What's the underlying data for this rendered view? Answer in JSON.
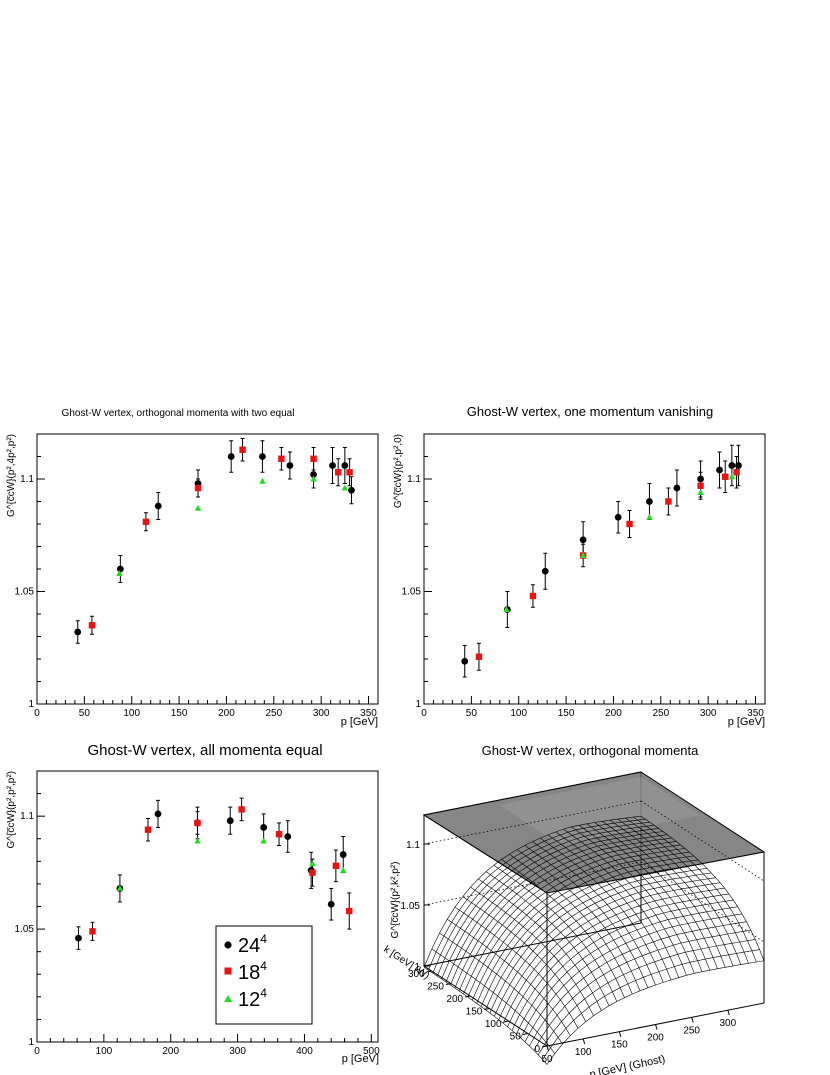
{
  "colors": {
    "series_24": "#000000",
    "series_18": "#ee1111",
    "series_12": "#22dd22"
  },
  "chart_data": [
    {
      "id": "p1",
      "type": "scatter",
      "title": "Ghost-W vertex, orthogonal momenta with two equal",
      "ylabel": "G^{c̅cW}(p²,4p²,p²)",
      "xlabel": "p [GeV]",
      "xlim": [
        0,
        360
      ],
      "ylim": [
        1.0,
        1.12
      ],
      "xticks": [
        0,
        50,
        100,
        150,
        200,
        250,
        300,
        350
      ],
      "yticks": [
        1.05,
        1.1
      ],
      "series": [
        {
          "key": "24",
          "marker": "circle",
          "x": [
            43,
            88,
            128,
            170,
            205,
            238,
            267,
            292,
            312,
            325,
            332
          ],
          "y": [
            1.032,
            1.06,
            1.088,
            1.098,
            1.11,
            1.11,
            1.106,
            1.102,
            1.106,
            1.106,
            1.095
          ],
          "err": [
            0.005,
            0.006,
            0.006,
            0.006,
            0.007,
            0.007,
            0.006,
            0.006,
            0.008,
            0.008,
            0.006
          ]
        },
        {
          "key": "18",
          "marker": "square",
          "x": [
            58,
            115,
            170,
            217,
            258,
            292,
            318,
            330
          ],
          "y": [
            1.035,
            1.081,
            1.096,
            1.113,
            1.109,
            1.109,
            1.103,
            1.103
          ],
          "err": [
            0.004,
            0.004,
            0.004,
            0.005,
            0.005,
            0.005,
            0.006,
            0.006
          ]
        },
        {
          "key": "12",
          "marker": "triangle",
          "x": [
            87,
            170,
            238,
            292,
            325
          ],
          "y": [
            1.058,
            1.087,
            1.099,
            1.1,
            1.096
          ],
          "err": [
            0,
            0,
            0,
            0,
            0
          ]
        }
      ]
    },
    {
      "id": "p2",
      "type": "scatter",
      "title": "Ghost-W vertex, one momentum vanishing",
      "ylabel": "G^{c̅cW}(p²,p²,0)",
      "xlabel": "p [GeV]",
      "xlim": [
        0,
        360
      ],
      "ylim": [
        1.0,
        1.12
      ],
      "xticks": [
        0,
        50,
        100,
        150,
        200,
        250,
        300,
        350
      ],
      "yticks": [
        1.05,
        1.1
      ],
      "series": [
        {
          "key": "24",
          "marker": "circle",
          "x": [
            43,
            88,
            128,
            168,
            205,
            238,
            267,
            292,
            312,
            325,
            332
          ],
          "y": [
            1.019,
            1.042,
            1.059,
            1.073,
            1.083,
            1.09,
            1.096,
            1.1,
            1.104,
            1.106,
            1.106
          ],
          "err": [
            0.007,
            0.008,
            0.008,
            0.008,
            0.007,
            0.008,
            0.008,
            0.008,
            0.008,
            0.009,
            0.009
          ]
        },
        {
          "key": "18",
          "marker": "square",
          "x": [
            58,
            115,
            168,
            217,
            258,
            292,
            318,
            330
          ],
          "y": [
            1.021,
            1.048,
            1.066,
            1.08,
            1.09,
            1.097,
            1.101,
            1.103
          ],
          "err": [
            0.006,
            0.005,
            0.005,
            0.006,
            0.006,
            0.006,
            0.007,
            0.007
          ]
        },
        {
          "key": "12",
          "marker": "triangle",
          "x": [
            87,
            168,
            238,
            292,
            325
          ],
          "y": [
            1.042,
            1.066,
            1.083,
            1.094,
            1.101
          ],
          "err": [
            0,
            0,
            0,
            0,
            0
          ]
        }
      ]
    },
    {
      "id": "p3",
      "type": "scatter",
      "title": "Ghost-W vertex, all momenta equal",
      "ylabel": "G^{c̅cW}(p²,p²,p²)",
      "xlabel": "p [GeV]",
      "xlim": [
        0,
        510
      ],
      "ylim": [
        1.0,
        1.12
      ],
      "xticks": [
        0,
        100,
        200,
        300,
        400,
        500
      ],
      "yticks": [
        1.05,
        1.1
      ],
      "legend": {
        "position": "bottom-center",
        "entries": [
          {
            "key": "24",
            "label": "24",
            "sup": "4"
          },
          {
            "key": "18",
            "label": "18",
            "sup": "4"
          },
          {
            "key": "12",
            "label": "12",
            "sup": "4"
          }
        ]
      },
      "series": [
        {
          "key": "24",
          "marker": "circle",
          "x": [
            62,
            124,
            181,
            240,
            289,
            339,
            375,
            410,
            440,
            458
          ],
          "y": [
            1.046,
            1.068,
            1.101,
            1.097,
            1.098,
            1.095,
            1.091,
            1.076,
            1.061,
            1.083
          ],
          "err": [
            0.005,
            0.006,
            0.006,
            0.007,
            0.006,
            0.006,
            0.007,
            0.008,
            0.007,
            0.008
          ]
        },
        {
          "key": "18",
          "marker": "square",
          "x": [
            83,
            166,
            240,
            306,
            362,
            412,
            447,
            467
          ],
          "y": [
            1.049,
            1.094,
            1.097,
            1.103,
            1.092,
            1.075,
            1.078,
            1.058
          ],
          "err": [
            0.004,
            0.005,
            0.005,
            0.005,
            0.005,
            0.006,
            0.007,
            0.008
          ]
        },
        {
          "key": "12",
          "marker": "triangle",
          "x": [
            124,
            240,
            339,
            412,
            458
          ],
          "y": [
            1.068,
            1.089,
            1.089,
            1.079,
            1.076
          ],
          "err": [
            0,
            0,
            0,
            0,
            0
          ]
        }
      ]
    },
    {
      "id": "p4",
      "type": "surface",
      "title": "Ghost-W vertex, orthogonal momenta",
      "zlabel": "G^{c̅cW}(p²,k²,p²)",
      "xlabel": "p [GeV] (Ghost)",
      "ylabel": "k [GeV] (W)",
      "xticks": [
        50,
        100,
        150,
        200,
        250,
        300
      ],
      "yticks": [
        0,
        50,
        100,
        150,
        200,
        250,
        300
      ],
      "zticks": [
        1,
        1.05,
        1.1
      ]
    }
  ]
}
